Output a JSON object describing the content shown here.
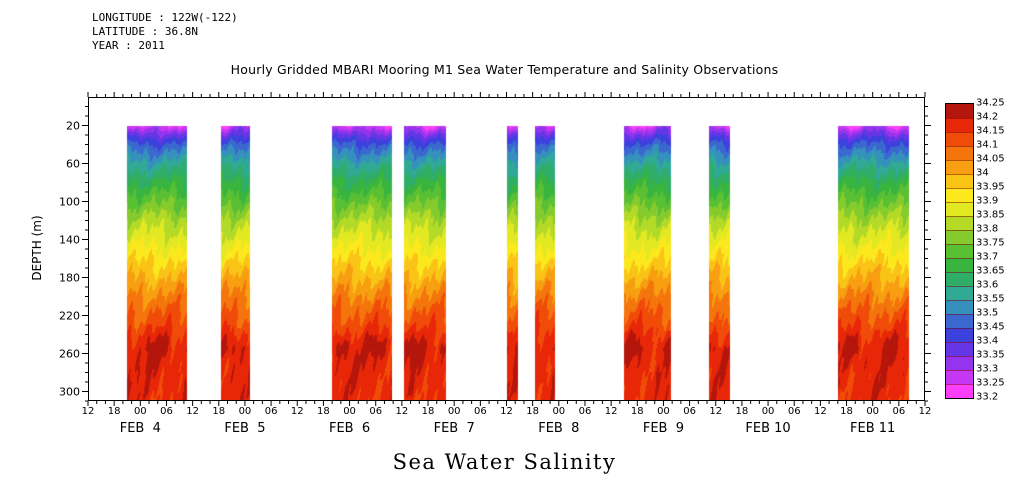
{
  "meta": {
    "longitude": "LONGITUDE : 122W(-122)",
    "latitude": "LATITUDE : 36.8N",
    "year": "YEAR : 2011"
  },
  "title": "Hourly Gridded MBARI Mooring M1 Sea Water Temperature and Salinity Observations",
  "caption": "Sea Water Salinity",
  "chart_data": {
    "type": "heatmap",
    "title": "Hourly Gridded MBARI Mooring M1 Sea Water Temperature and Salinity Observations",
    "variable": "Sea Water Salinity",
    "ylabel": "DEPTH (m)",
    "y_ticks": [
      20,
      60,
      100,
      140,
      180,
      220,
      260,
      300
    ],
    "depth_axis_range": [
      -10,
      310
    ],
    "data_depth_range": [
      20,
      310
    ],
    "x_start": "FEB 3 12:00 2011",
    "x_end": "FEB 11 12:00 2011",
    "x_total_hours": 192,
    "hour_tick_step": 6,
    "hour_tick_labels": [
      "12",
      "18",
      "00",
      "06",
      "12",
      "18",
      "00",
      "06",
      "12",
      "18",
      "00",
      "06",
      "12",
      "18",
      "00",
      "06",
      "12",
      "18",
      "00",
      "06",
      "12",
      "18",
      "00",
      "06",
      "12",
      "18",
      "00",
      "06",
      "12",
      "18",
      "00",
      "06",
      "12"
    ],
    "date_labels": [
      {
        "label": "FEB  4",
        "hour": 12
      },
      {
        "label": "FEB  5",
        "hour": 36
      },
      {
        "label": "FEB  6",
        "hour": 60
      },
      {
        "label": "FEB  7",
        "hour": 84
      },
      {
        "label": "FEB  8",
        "hour": 108
      },
      {
        "label": "FEB  9",
        "hour": 132
      },
      {
        "label": "FEB 10",
        "hour": 156
      },
      {
        "label": "FEB 11",
        "hour": 180
      }
    ],
    "data_bands_hours": [
      [
        9,
        22.5
      ],
      [
        30.5,
        37
      ],
      [
        56,
        69.5
      ],
      [
        72.5,
        82
      ],
      [
        96,
        98.5
      ],
      [
        102.5,
        107
      ],
      [
        123,
        133.5
      ],
      [
        142.5,
        147
      ],
      [
        172,
        188
      ]
    ],
    "mean_salinity_depth_profile": [
      [
        20,
        33.3
      ],
      [
        30,
        33.38
      ],
      [
        40,
        33.46
      ],
      [
        60,
        33.57
      ],
      [
        80,
        33.66
      ],
      [
        100,
        33.74
      ],
      [
        120,
        33.82
      ],
      [
        140,
        33.88
      ],
      [
        160,
        33.94
      ],
      [
        180,
        34.0
      ],
      [
        200,
        34.06
      ],
      [
        220,
        34.11
      ],
      [
        240,
        34.16
      ],
      [
        255,
        34.19
      ],
      [
        270,
        34.185
      ],
      [
        290,
        34.18
      ],
      [
        310,
        34.17
      ]
    ],
    "colorbar": {
      "min": 33.2,
      "max": 34.25,
      "step": 0.05,
      "tick_labels": [
        "34.25",
        "34.2",
        "34.15",
        "34.1",
        "34.05",
        "34",
        "33.95",
        "33.9",
        "33.85",
        "33.8",
        "33.75",
        "33.7",
        "33.65",
        "33.6",
        "33.55",
        "33.5",
        "33.45",
        "33.4",
        "33.35",
        "33.3",
        "33.25",
        "33.2"
      ],
      "segment_colors_bottom_to_top": [
        "#f93ff9",
        "#c637f3",
        "#9534ec",
        "#6436e6",
        "#3c40dd",
        "#3a68cf",
        "#3590bd",
        "#30a995",
        "#30ad66",
        "#38b43f",
        "#59bf33",
        "#86cb2d",
        "#b4da28",
        "#e2e822",
        "#fbe81d",
        "#fac417",
        "#f79e11",
        "#f4750c",
        "#f04b08",
        "#e82608",
        "#b5160b"
      ]
    }
  }
}
